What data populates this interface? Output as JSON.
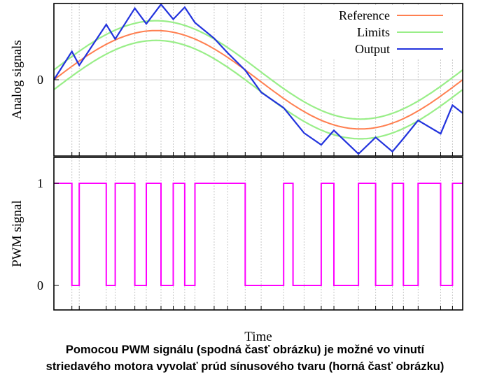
{
  "chart_data": [
    {
      "type": "line",
      "ylabel": "Analog signals",
      "xlabel": "",
      "ytick_labels": [
        "0"
      ],
      "xlim": [
        0,
        1
      ],
      "ylim": [
        -1.55,
        1.55
      ],
      "grid": "vertical dashed lines at each PWM switching instant",
      "legend_position": "top-right",
      "series": [
        {
          "name": "Reference",
          "color": "#ff7f50",
          "function": "sin(2*pi*t)"
        },
        {
          "name": "Limits",
          "color": "#99ee88",
          "function": "sin(2*pi*t) +/- 0.2"
        },
        {
          "name": "Output",
          "color": "#2233dd",
          "x": [
            0,
            0.044,
            0.062,
            0.128,
            0.15,
            0.198,
            0.226,
            0.262,
            0.292,
            0.32,
            0.345,
            0.392,
            0.425,
            0.468,
            0.507,
            0.562,
            0.612,
            0.654,
            0.685,
            0.745,
            0.787,
            0.828,
            0.855,
            0.891,
            0.946,
            0.975,
            1.0
          ],
          "y": [
            0.0,
            0.575,
            0.294,
            1.122,
            0.828,
            1.454,
            1.137,
            1.531,
            1.23,
            1.473,
            1.16,
            0.842,
            0.546,
            0.195,
            -0.255,
            -0.57,
            -1.082,
            -1.323,
            -1.029,
            -1.507,
            -1.17,
            -1.46,
            -1.195,
            -0.826,
            -1.097,
            -0.517,
            -0.68
          ]
        }
      ]
    },
    {
      "type": "line",
      "ylabel": "PWM signal",
      "xlabel": "Time",
      "ytick_labels": [
        "1",
        "0"
      ],
      "ylim": [
        -0.18,
        1.18
      ],
      "series": [
        {
          "name": "",
          "color": "#ff00ff",
          "x": [
            0,
            0.044,
            0.044,
            0.062,
            0.062,
            0.128,
            0.128,
            0.15,
            0.15,
            0.198,
            0.198,
            0.226,
            0.226,
            0.262,
            0.262,
            0.292,
            0.292,
            0.32,
            0.32,
            0.345,
            0.345,
            0.468,
            0.468,
            0.562,
            0.562,
            0.585,
            0.585,
            0.654,
            0.654,
            0.685,
            0.685,
            0.745,
            0.745,
            0.787,
            0.787,
            0.828,
            0.828,
            0.855,
            0.855,
            0.891,
            0.891,
            0.946,
            0.946,
            0.975,
            0.975,
            1.0
          ],
          "y": [
            1,
            1,
            0,
            0,
            1,
            1,
            0,
            0,
            1,
            1,
            0,
            0,
            1,
            1,
            0,
            0,
            1,
            1,
            0,
            0,
            1,
            1,
            0,
            0,
            1,
            1,
            0,
            0,
            1,
            1,
            0,
            0,
            1,
            1,
            0,
            0,
            1,
            1,
            0,
            0,
            1,
            1,
            0,
            0,
            1,
            1
          ]
        }
      ]
    }
  ],
  "caption": {
    "line1": "Pomocou PWM signálu (spodná časť obrázku) je možné vo vinutí",
    "line2": "striedavého motora vyvolať prúd sínusového tvaru (horná časť obrázku)"
  }
}
